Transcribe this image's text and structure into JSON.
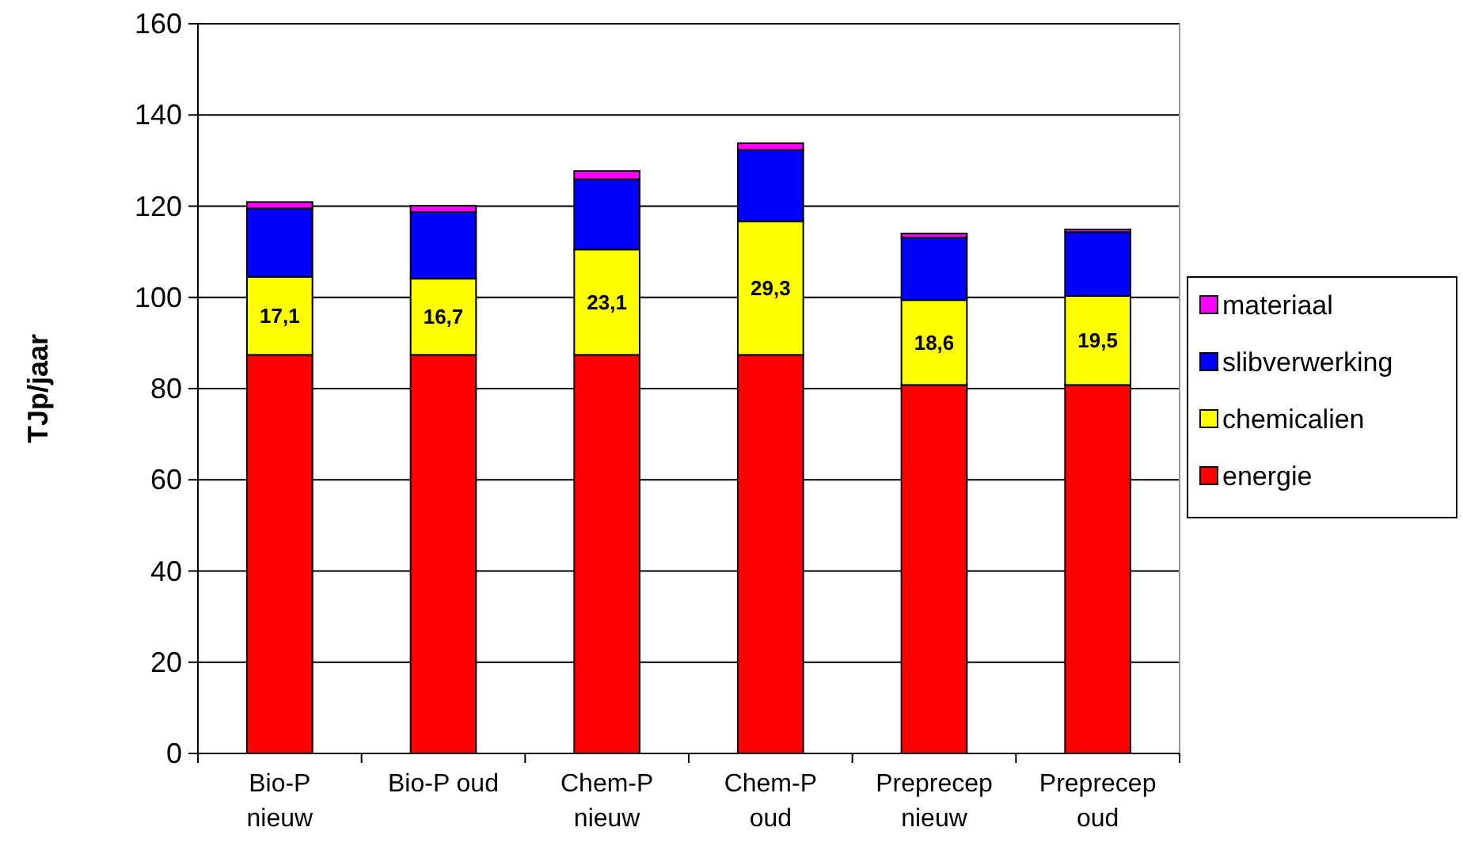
{
  "chart_data": {
    "type": "bar",
    "stacked": true,
    "ylabel": "TJp/jaar",
    "categories": [
      "Bio-P nieuw",
      "Bio-P oud",
      "Chem-P nieuw",
      "Chem-P oud",
      "Preprecep nieuw",
      "Preprecep oud"
    ],
    "series": [
      {
        "name": "energie",
        "color": "#ff0000",
        "values": [
          87.4,
          87.4,
          87.4,
          87.4,
          80.8,
          80.8
        ]
      },
      {
        "name": "chemicalien",
        "color": "#ffff00",
        "values": [
          17.1,
          16.7,
          23.1,
          29.3,
          18.6,
          19.5
        ],
        "value_labels": [
          "17,1",
          "16,7",
          "23,1",
          "29,3",
          "18,6",
          "19,5"
        ]
      },
      {
        "name": "slibverwerking",
        "color": "#0000ff",
        "values": [
          15.0,
          14.6,
          15.4,
          15.6,
          13.7,
          14.0
        ]
      },
      {
        "name": "materiaal",
        "color": "#ff00ff",
        "values": [
          1.4,
          1.4,
          1.8,
          1.5,
          0.9,
          0.6
        ]
      }
    ],
    "ylim": [
      0,
      160
    ],
    "yticks": [
      0,
      20,
      40,
      60,
      80,
      100,
      120,
      140,
      160
    ],
    "grid": "y",
    "legend": "right"
  }
}
